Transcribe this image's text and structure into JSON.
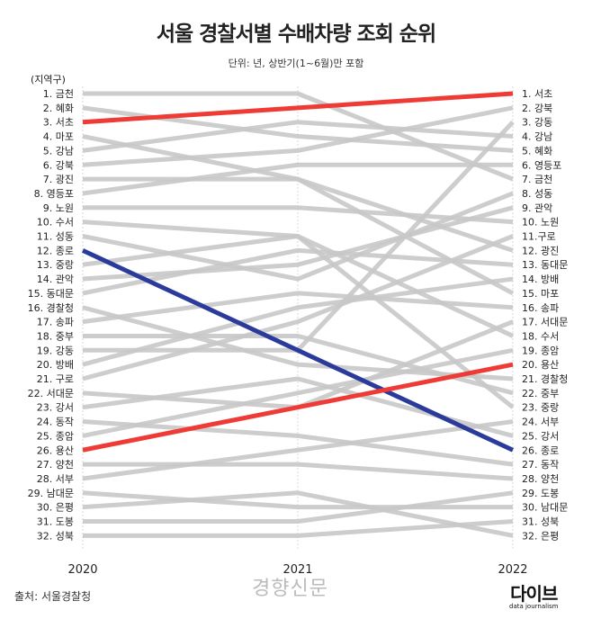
{
  "title": "서울 경찰서별 수배차량 조회 순위",
  "subtitle": "단위: 년, 상반기(1~6월)만 포함",
  "column_header": "(지역구)",
  "source": "출처:  서울경찰청",
  "watermark": "경향신문",
  "logo": {
    "main": "다이브",
    "sub": "data journalism"
  },
  "colors": {
    "grey": "#c8c8c8",
    "red": "#ef3b36",
    "blue": "#2b3b9c",
    "highlight_red": "#e8312c",
    "highlight_blue": "#2b3b9c"
  },
  "chart_data": {
    "type": "slope",
    "x": [
      "2020",
      "2021",
      "2022"
    ],
    "ylim": [
      1,
      32
    ],
    "left_labels": [
      "1. 금천",
      "2. 혜화",
      "3. 서초",
      "4. 마포",
      "5. 강남",
      "6. 강북",
      "7. 광진",
      "8. 영등포",
      "9. 노원",
      "10. 수서",
      "11. 성동",
      "12. 종로",
      "13. 중랑",
      "14. 관악",
      "15. 동대문",
      "16. 경찰청",
      "17. 송파",
      "18. 중부",
      "19. 강동",
      "20. 방배",
      "21. 구로",
      "22. 서대문",
      "23. 강서",
      "24. 동작",
      "25. 종암",
      "26. 용산",
      "27. 양천",
      "28. 서부",
      "29. 남대문",
      "30. 은평",
      "31. 도봉",
      "32. 성북"
    ],
    "right_labels": [
      "1. 서초",
      "2. 강북",
      "3. 강동",
      "4. 강남",
      "5. 혜화",
      "6. 영등포",
      "7. 금천",
      "8. 성동",
      "9. 관악",
      "10. 노원",
      "11.구로",
      "12. 광진",
      "13. 동대문",
      "14. 방배",
      "15. 마포",
      "16. 송파",
      "17. 서대문",
      "18. 수서",
      "19. 종암",
      "20. 용산",
      "21. 경찰청",
      "22. 중부",
      "23. 중랑",
      "24. 서부",
      "25. 강서",
      "26. 종로",
      "27. 동작",
      "28. 양천",
      "29. 도봉",
      "30. 남대문",
      "31. 성북",
      "32. 은평"
    ],
    "highlight_left": {
      "서초": "red",
      "종로": "blue",
      "용산": "red"
    },
    "highlight_right": {
      "서초": "red",
      "용산": "red",
      "종로": "blue"
    },
    "series": [
      {
        "name": "금천",
        "ranks": [
          1,
          1,
          7
        ]
      },
      {
        "name": "혜화",
        "ranks": [
          2,
          4,
          5
        ]
      },
      {
        "name": "서초",
        "ranks": [
          3,
          2,
          1
        ],
        "color": "red"
      },
      {
        "name": "마포",
        "ranks": [
          4,
          7,
          15
        ]
      },
      {
        "name": "강남",
        "ranks": [
          5,
          3,
          4
        ]
      },
      {
        "name": "강북",
        "ranks": [
          6,
          5,
          2
        ]
      },
      {
        "name": "광진",
        "ranks": [
          7,
          7,
          12
        ]
      },
      {
        "name": "영등포",
        "ranks": [
          8,
          6,
          6
        ]
      },
      {
        "name": "노원",
        "ranks": [
          9,
          9,
          10
        ]
      },
      {
        "name": "수서",
        "ranks": [
          10,
          11,
          18
        ]
      },
      {
        "name": "성동",
        "ranks": [
          11,
          14,
          8
        ]
      },
      {
        "name": "종로",
        "ranks": [
          12,
          19,
          26
        ],
        "color": "blue"
      },
      {
        "name": "중랑",
        "ranks": [
          13,
          11,
          23
        ]
      },
      {
        "name": "관악",
        "ranks": [
          14,
          13,
          9
        ]
      },
      {
        "name": "동대문",
        "ranks": [
          15,
          12,
          13
        ]
      },
      {
        "name": "경찰청",
        "ranks": [
          16,
          20,
          21
        ]
      },
      {
        "name": "송파",
        "ranks": [
          17,
          15,
          16
        ]
      },
      {
        "name": "중부",
        "ranks": [
          18,
          18,
          22
        ]
      },
      {
        "name": "강동",
        "ranks": [
          19,
          19,
          3
        ]
      },
      {
        "name": "방배",
        "ranks": [
          20,
          16,
          14
        ]
      },
      {
        "name": "구로",
        "ranks": [
          21,
          17,
          11
        ]
      },
      {
        "name": "서대문",
        "ranks": [
          22,
          23,
          17
        ]
      },
      {
        "name": "강서",
        "ranks": [
          23,
          21,
          25
        ]
      },
      {
        "name": "동작",
        "ranks": [
          24,
          25,
          27
        ]
      },
      {
        "name": "종암",
        "ranks": [
          25,
          22,
          19
        ]
      },
      {
        "name": "용산",
        "ranks": [
          26,
          23,
          20
        ],
        "color": "red"
      },
      {
        "name": "양천",
        "ranks": [
          27,
          27,
          28
        ]
      },
      {
        "name": "서부",
        "ranks": [
          28,
          26,
          24
        ]
      },
      {
        "name": "남대문",
        "ranks": [
          29,
          30,
          30
        ]
      },
      {
        "name": "은평",
        "ranks": [
          30,
          29,
          32
        ]
      },
      {
        "name": "도봉",
        "ranks": [
          31,
          31,
          29
        ]
      },
      {
        "name": "성북",
        "ranks": [
          32,
          32,
          31
        ]
      }
    ]
  }
}
